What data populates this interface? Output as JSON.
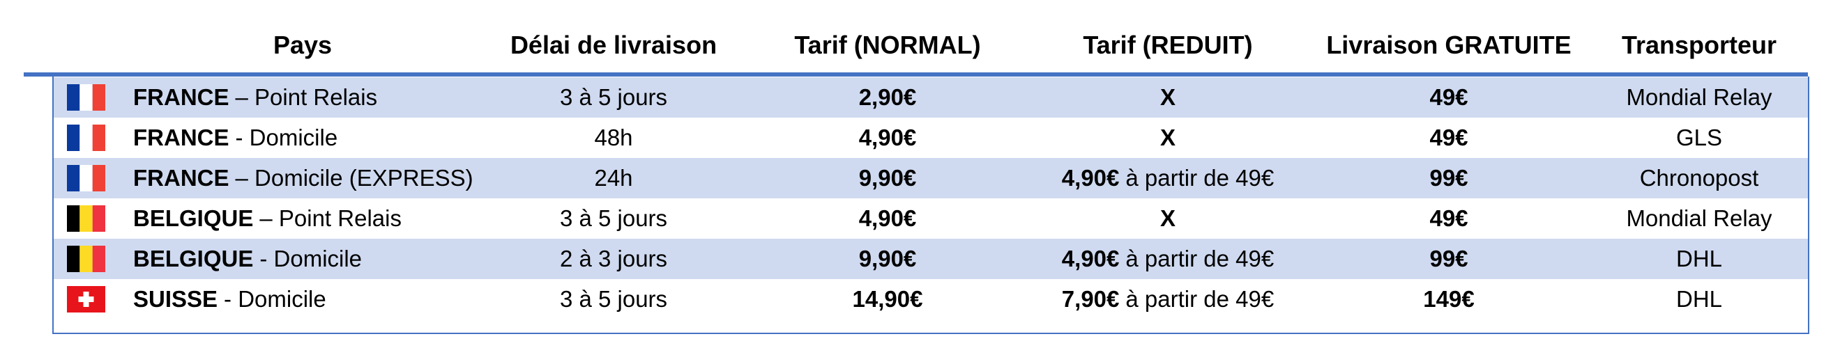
{
  "header": [
    "Pays",
    "Délai de livraison",
    "Tarif (NORMAL)",
    "Tarif (REDUIT)",
    "Livraison GRATUITE",
    "Transporteur"
  ],
  "rows": [
    {
      "country": "FRANCE",
      "mode": "– Point Relais",
      "delai": "3 à 5 jours",
      "normal": "2,90€",
      "reduit": {
        "price": "X"
      },
      "gratuite": "49€",
      "transporteur": "Mondial Relay"
    },
    {
      "country": "FRANCE",
      "mode": "- Domicile",
      "delai": "48h",
      "normal": "4,90€",
      "reduit": {
        "price": "X"
      },
      "gratuite": "49€",
      "transporteur": "GLS"
    },
    {
      "country": "FRANCE",
      "mode": "– Domicile (EXPRESS)",
      "delai": "24h",
      "normal": "9,90€",
      "reduit": {
        "price": "4,90€",
        "note": "à partir de 49€"
      },
      "gratuite": "99€",
      "transporteur": "Chronopost"
    },
    {
      "country": "BELGIQUE",
      "mode": "– Point Relais",
      "delai": "3 à 5 jours",
      "normal": "4,90€",
      "reduit": {
        "price": "X"
      },
      "gratuite": "49€",
      "transporteur": "Mondial Relay"
    },
    {
      "country": "BELGIQUE",
      "mode": "- Domicile",
      "delai": "2 à 3 jours",
      "normal": "9,90€",
      "reduit": {
        "price": "4,90€",
        "note": "à partir de 49€"
      },
      "gratuite": "99€",
      "transporteur": "DHL"
    },
    {
      "country": "SUISSE",
      "mode": "- Domicile",
      "delai": "3 à 5 jours",
      "normal": "14,90€",
      "reduit": {
        "price": "7,90€",
        "note": "à partir de 49€"
      },
      "gratuite": "149€",
      "transporteur": "DHL"
    }
  ]
}
